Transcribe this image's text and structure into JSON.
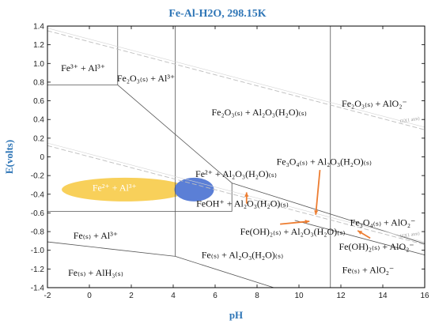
{
  "chart_data": {
    "type": "pourbaix",
    "title": "Fe-Al-H2O,  298.15K",
    "xlabel": "pH",
    "ylabel": "E(volts)",
    "xlim": [
      -2,
      16
    ],
    "ylim": [
      -1.4,
      1.4
    ],
    "x_ticks": [
      "-2",
      "0",
      "2",
      "4",
      "6",
      "8",
      "10",
      "12",
      "14",
      "16"
    ],
    "y_ticks": [
      "1.4",
      "1.2",
      "1.0",
      "0.8",
      "0.6",
      "0.4",
      "0.2",
      "0",
      "-0.2",
      "-0.4",
      "-0.6",
      "-0.8",
      "-1.0",
      "-1.2",
      "-1.4"
    ],
    "water_lines": [
      {
        "label": "O2(1 atm)",
        "x": [
          -2,
          16
        ],
        "E": [
          1.35,
          0.29
        ]
      },
      {
        "label": "H2(1 atm)",
        "x": [
          -2,
          16
        ],
        "E": [
          0.12,
          -0.94
        ]
      }
    ],
    "boundaries": [
      {
        "x": [
          -2,
          1.35
        ],
        "E": [
          0.77,
          0.77
        ]
      },
      {
        "x": [
          1.35,
          1.35
        ],
        "E": [
          1.4,
          0.77
        ]
      },
      {
        "x": [
          1.35,
          6.8
        ],
        "E": [
          0.77,
          -0.28
        ]
      },
      {
        "x": [
          -2,
          6.8
        ],
        "E": [
          -0.585,
          -0.585
        ]
      },
      {
        "x": [
          6.8,
          6.8
        ],
        "E": [
          -0.28,
          -0.585
        ]
      },
      {
        "x": [
          6.8,
          16
        ],
        "E": [
          -0.28,
          -0.93
        ]
      },
      {
        "x": [
          9.8,
          16
        ],
        "E": [
          -0.68,
          -1.05
        ]
      },
      {
        "x": [
          4.1,
          4.1
        ],
        "E": [
          1.4,
          -1.065
        ]
      },
      {
        "x": [
          11.5,
          11.5
        ],
        "E": [
          1.4,
          -1.4
        ]
      },
      {
        "x": [
          -2,
          4.1
        ],
        "E": [
          -0.91,
          -1.065
        ]
      },
      {
        "x": [
          4.1,
          8.8
        ],
        "E": [
          -1.065,
          -1.4
        ]
      }
    ],
    "highlights": [
      {
        "label": "Fe2+ + Al3+ region",
        "color": "#f8d05a",
        "cx": 1.7,
        "cy": -0.35
      },
      {
        "label": "Fe2+ + Al2O3(H2O)(s) region",
        "color": "#5b7fd6",
        "cx": 5.0,
        "cy": -0.35
      }
    ],
    "regions": [
      {
        "text": "Fe³⁺ + Al³⁺",
        "x": -0.3,
        "E": 0.95
      },
      {
        "text": "Fe₂O₃₍ₛ₎ + Al³⁺",
        "x": 2.7,
        "E": 0.84
      },
      {
        "text": "Fe₂O₃₍ₛ₎ + Al₂O₃(H₂O)₍ₛ₎",
        "x": 8.1,
        "E": 0.48
      },
      {
        "text": "Fe₂O₃₍ₛ₎ + AlO₂⁻",
        "x": 13.6,
        "E": 0.57
      },
      {
        "text": "Fe²⁺ + Al₂O₃(H₂O)₍ₛ₎",
        "x": 7.0,
        "E": -0.18
      },
      {
        "text": "Fe²⁺ + Al³⁺",
        "x": 1.2,
        "E": -0.33
      },
      {
        "text": "FeOH⁺ + Al₂O₃(H₂O)₍ₛ₎",
        "x": 7.3,
        "E": -0.5
      },
      {
        "text": "Fe₃O₄₍ₛ₎ + Al₂O₃(H₂O)₍ₛ₎",
        "x": 11.2,
        "E": -0.05
      },
      {
        "text": "Fe₃O₄₍ₛ₎ + AlO₂⁻",
        "x": 14.0,
        "E": -0.7
      },
      {
        "text": "Fe(OH)₂₍ₛ₎ + Al₂O₃(H₂O)₍ₛ₎",
        "x": 9.7,
        "E": -0.8
      },
      {
        "text": "Fe(OH)₂₍ₛ₎ + AlO₂⁻",
        "x": 13.7,
        "E": -0.96
      },
      {
        "text": "Fe₍ₛ₎ + Al³⁺",
        "x": 0.3,
        "E": -0.84
      },
      {
        "text": "Fe₍ₛ₎ + Al₂O₃(H₂O)₍ₛ₎",
        "x": 7.3,
        "E": -1.05
      },
      {
        "text": "Fe₍ₛ₎ + AlO₂⁻",
        "x": 13.3,
        "E": -1.21
      },
      {
        "text": "Fe₍ₛ₎ + AlH₃₍ₛ₎",
        "x": 0.3,
        "E": -1.24
      }
    ],
    "arrows": [
      {
        "from": [
          7.5,
          -0.5
        ],
        "to": [
          7.5,
          -0.38
        ]
      },
      {
        "from": [
          11.0,
          -0.14
        ],
        "to": [
          10.8,
          -0.62
        ]
      },
      {
        "from": [
          9.1,
          -0.72
        ],
        "to": [
          10.5,
          -0.69
        ]
      },
      {
        "from": [
          13.4,
          -0.87
        ],
        "to": [
          12.8,
          -0.79
        ]
      }
    ],
    "colors": {
      "arrow": "#ed7d31",
      "title": "#2e75b6",
      "yellow": "#f8d05a",
      "blue": "#5b7fd6"
    }
  }
}
